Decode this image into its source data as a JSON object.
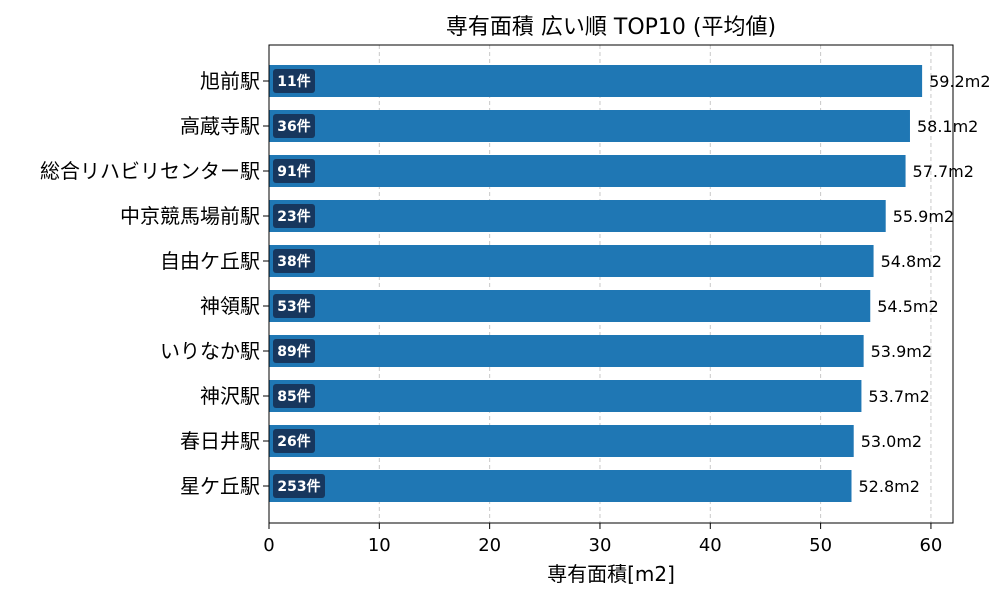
{
  "chart_data": {
    "type": "bar",
    "orientation": "horizontal",
    "title": "専有面積 広い順 TOP10 (平均値)",
    "xlabel": "専有面積[m2]",
    "ylabel": "",
    "xlim": [
      0,
      62
    ],
    "xticks": [
      0,
      10,
      20,
      30,
      40,
      50,
      60
    ],
    "grid": "x-dashed",
    "bar_color": "#1f77b4",
    "badge_color": "#17375e",
    "categories": [
      "旭前駅",
      "高蔵寺駅",
      "総合リハビリセンター駅",
      "中京競馬場前駅",
      "自由ケ丘駅",
      "神領駅",
      "いりなか駅",
      "神沢駅",
      "春日井駅",
      "星ケ丘駅"
    ],
    "values": [
      59.2,
      58.1,
      57.7,
      55.9,
      54.8,
      54.5,
      53.9,
      53.7,
      53.0,
      52.8
    ],
    "value_labels": [
      "59.2m2",
      "58.1m2",
      "57.7m2",
      "55.9m2",
      "54.8m2",
      "54.5m2",
      "53.9m2",
      "53.7m2",
      "53.0m2",
      "52.8m2"
    ],
    "counts": [
      "11件",
      "36件",
      "91件",
      "23件",
      "38件",
      "53件",
      "89件",
      "85件",
      "26件",
      "253件"
    ]
  }
}
